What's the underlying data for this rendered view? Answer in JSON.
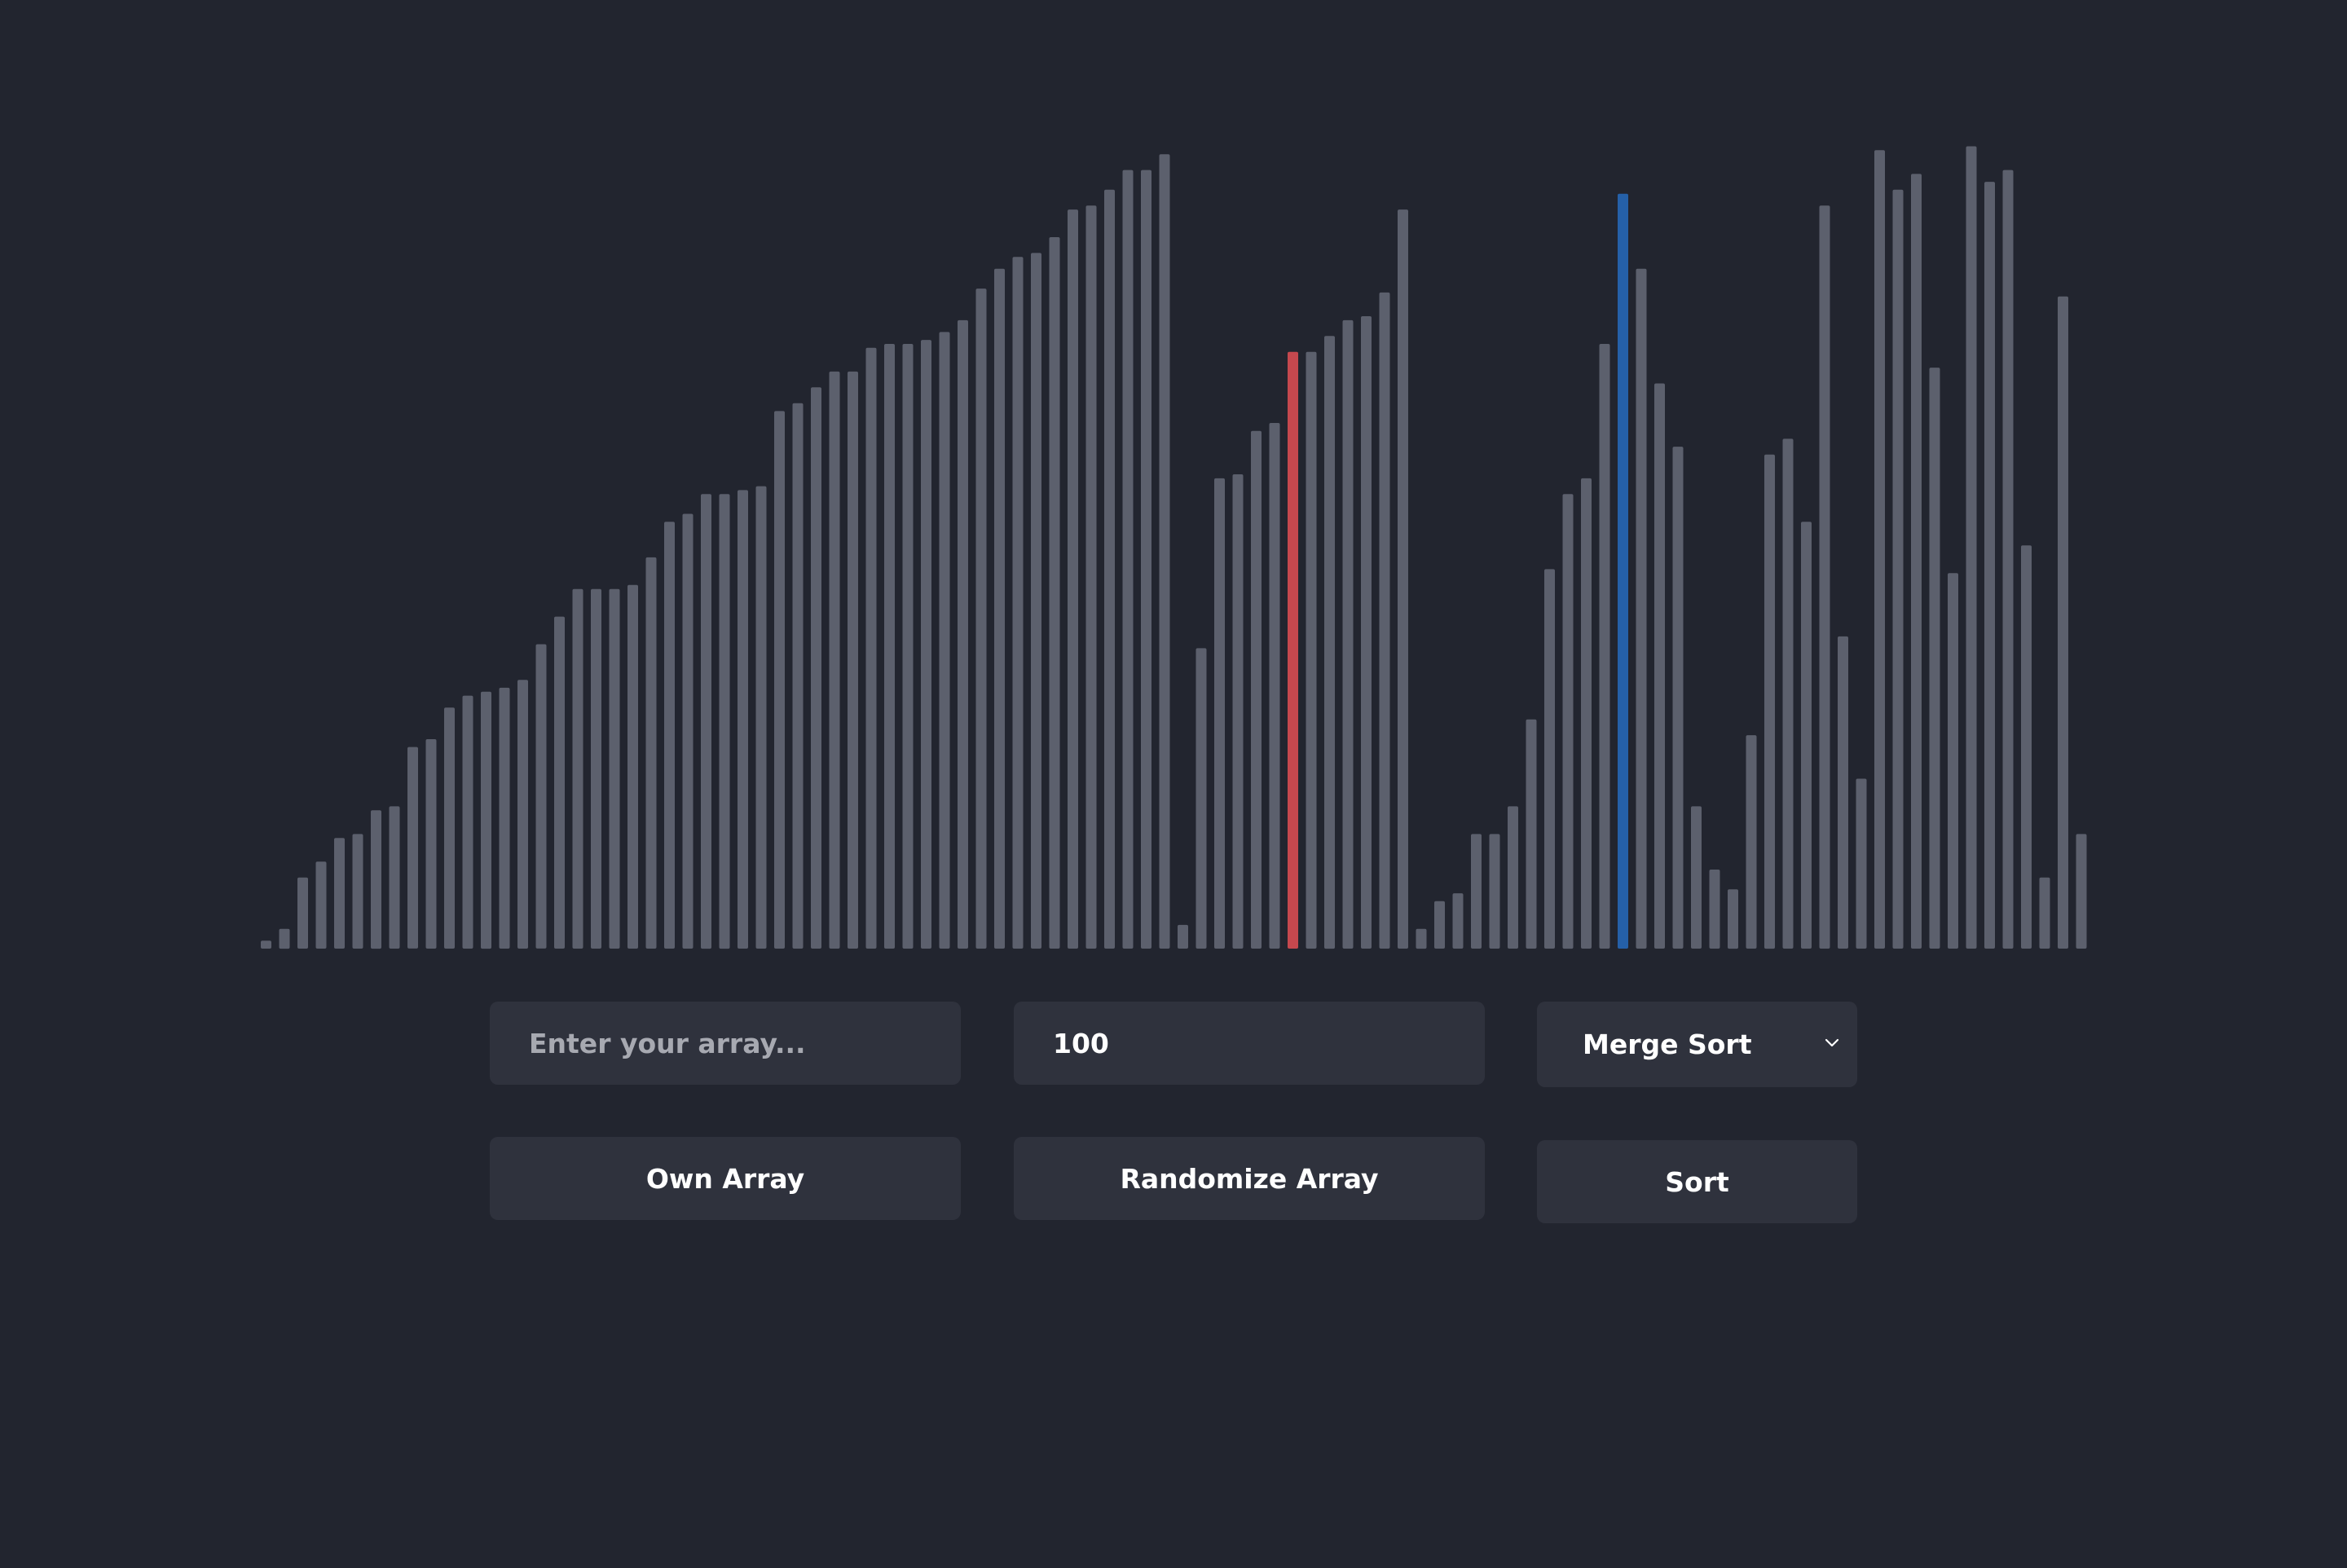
{
  "colors": {
    "background": "#22252f",
    "bar_default": "#5c606d",
    "bar_compare": "#c5484e",
    "bar_active": "#2560a8",
    "control_bg": "#2f323d",
    "text": "#ffffff",
    "placeholder": "#a7a9b1"
  },
  "chart_data": {
    "type": "bar",
    "title": "",
    "xlabel": "",
    "ylabel": "",
    "ylim": [
      0,
      100
    ],
    "values": [
      1,
      2.5,
      9,
      11,
      14,
      14.5,
      17.5,
      18,
      25.5,
      26.5,
      30.5,
      32,
      32.5,
      33,
      34,
      38.5,
      42,
      45.5,
      45.5,
      45.5,
      46,
      49.5,
      54,
      55,
      57.5,
      57.5,
      58,
      58.5,
      68,
      69,
      71,
      73,
      73,
      76,
      76.5,
      76.5,
      77,
      78,
      79.5,
      83.5,
      86,
      87.5,
      88,
      90,
      93.5,
      94,
      96,
      98.5,
      98.5,
      100.5,
      3,
      38,
      59.5,
      60,
      65.5,
      66.5,
      75.5,
      75.5,
      77.5,
      79.5,
      80,
      83,
      93.5,
      2.5,
      6,
      7,
      14.5,
      14.5,
      18,
      29,
      48,
      57.5,
      59.5,
      76.5,
      95.5,
      86,
      71.5,
      63.5,
      18,
      10,
      7.5,
      27,
      62.5,
      64.5,
      54,
      94,
      39.5,
      21.5,
      101,
      96,
      98,
      73.5,
      47.5,
      101.5,
      97,
      98.5,
      51,
      9,
      82.5,
      14.5
    ],
    "highlight": {
      "compare_index": 56,
      "active_index": 74
    }
  },
  "controls": {
    "own_array_input": {
      "value": "",
      "placeholder": "Enter your array..."
    },
    "size_input": {
      "value": "100",
      "placeholder": ""
    },
    "algorithm_select": {
      "selected": "Merge Sort"
    },
    "own_array_button": "Own Array",
    "randomize_button": "Randomize Array",
    "sort_button": "Sort"
  }
}
